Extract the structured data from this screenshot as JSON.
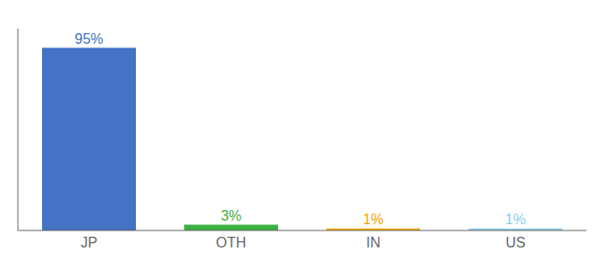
{
  "chart_data": {
    "type": "bar",
    "categories": [
      "JP",
      "OTH",
      "IN",
      "US"
    ],
    "values": [
      95,
      3,
      1,
      1
    ],
    "value_labels": [
      "95%",
      "3%",
      "1%",
      "1%"
    ],
    "data_labels": true,
    "colors": [
      "#4472c4",
      "#3cb043",
      "#f0a500",
      "#87ceeb"
    ],
    "ylim": [
      0,
      105
    ],
    "yticks": [],
    "tick_labels": "x",
    "grid": false
  }
}
